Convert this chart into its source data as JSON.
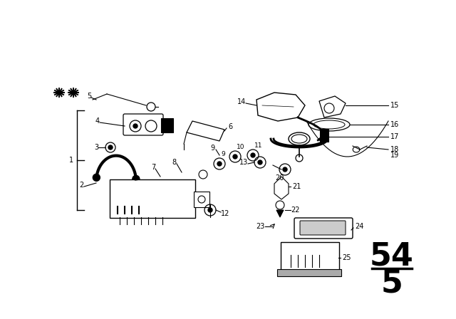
{
  "bg_color": "#ffffff",
  "line_color": "#000000",
  "fig_width": 6.4,
  "fig_height": 4.48,
  "dpi": 100
}
